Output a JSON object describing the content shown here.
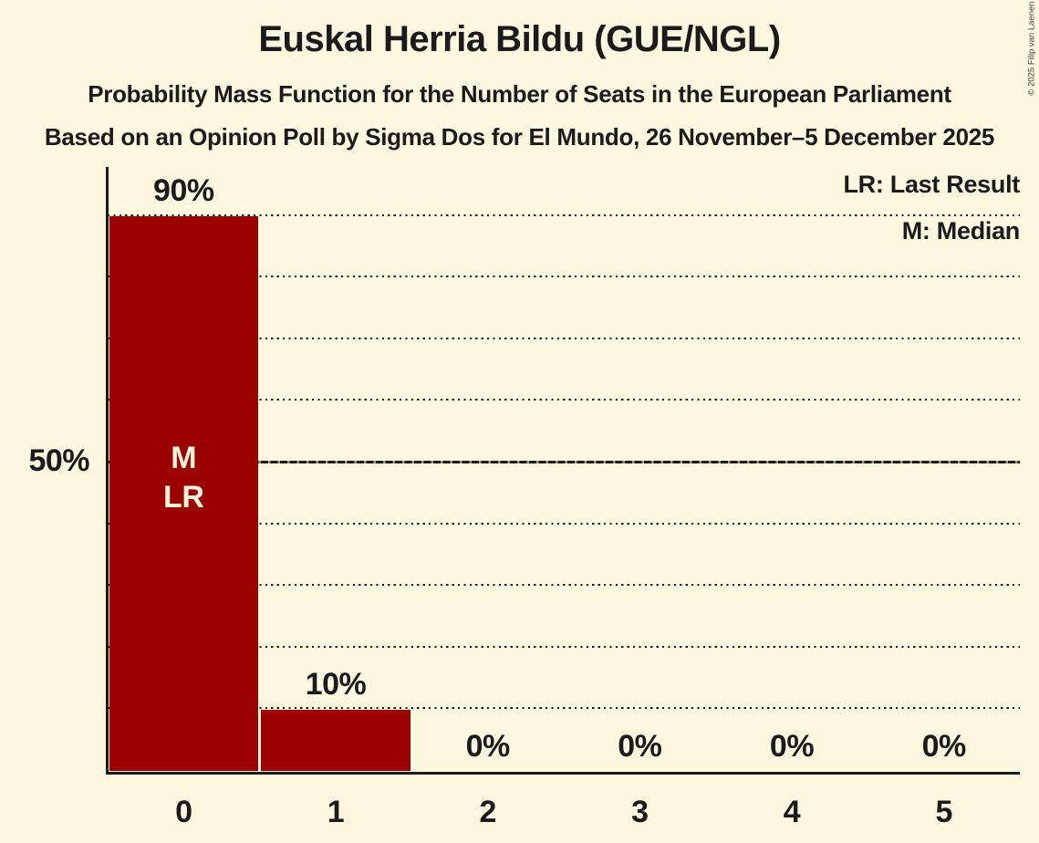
{
  "header": {
    "title": "Euskal Herria Bildu (GUE/NGL)",
    "subtitle": "Probability Mass Function for the Number of Seats in the European Parliament",
    "source": "Based on an Opinion Poll by Sigma Dos for El Mundo, 26 November–5 December 2025",
    "copyright": "© 2025 Filip van Laenen"
  },
  "legend": {
    "last_result": "LR: Last Result",
    "median": "M: Median"
  },
  "colors": {
    "background": "#FCF8E0",
    "bar": "#9B0303",
    "text": "#1B1B1B",
    "grid": "#1B1B1B",
    "bar_text": "#F8F2DA",
    "copyright_text": "#3C3C3C"
  },
  "chart_data": {
    "type": "bar",
    "title": "Euskal Herria Bildu (GUE/NGL)",
    "categories": [
      "0",
      "1",
      "2",
      "3",
      "4",
      "5"
    ],
    "values": [
      90,
      10,
      0,
      0,
      0,
      0
    ],
    "value_labels": [
      "90%",
      "10%",
      "0%",
      "0%",
      "0%",
      "0%"
    ],
    "ylim": [
      0,
      100
    ],
    "y_axis_label": {
      "text": "50%",
      "value": 50
    },
    "dotted_gridlines": [
      10,
      20,
      30,
      40,
      60,
      70,
      80,
      90
    ],
    "solid_gridline": 50,
    "grid": "dotted horizontal lines every 10%",
    "legend_position": "top-right",
    "bar_annotations": {
      "bar_index": 0,
      "lines": [
        "M",
        "LR"
      ]
    }
  }
}
